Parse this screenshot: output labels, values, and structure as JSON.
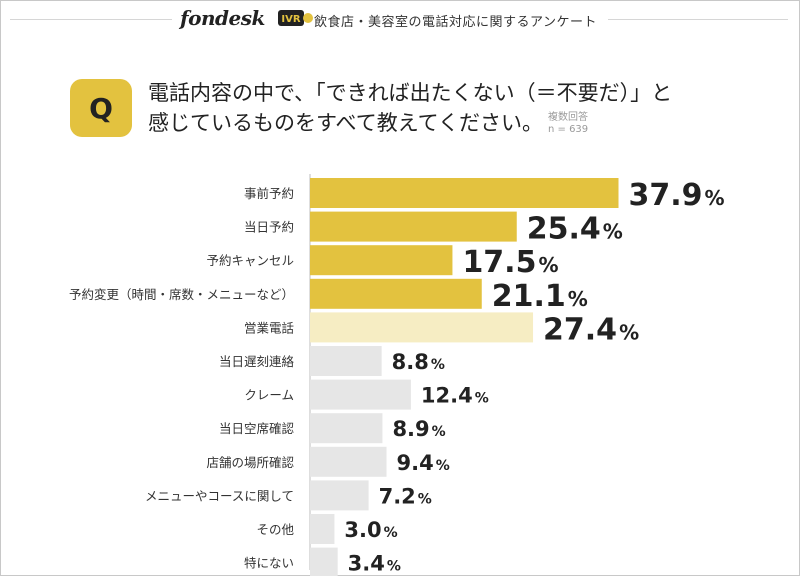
{
  "header": {
    "brand": "fondesk",
    "brand_badge": "IVR",
    "survey_title": "飲食店・美容室の電話対応に関するアンケート"
  },
  "question": {
    "badge": "Q",
    "line1": "電話内容の中で、「できれば出たくない（＝不要だ）」と",
    "line2": "感じているものをすべて教えてください。",
    "meta_label": "複数回答",
    "meta_n": "n = 639"
  },
  "colors": {
    "accent": "#e3c23f",
    "highlight": "#f6edc3",
    "neutral": "#e6e6e6",
    "text": "#222222"
  },
  "chart_data": {
    "type": "bar",
    "orientation": "horizontal",
    "title": "電話内容の中で、「できれば出たくない（＝不要だ）」と感じているものをすべて教えてください。",
    "unit": "%",
    "xlim": [
      0,
      45
    ],
    "categories": [
      "事前予約",
      "当日予約",
      "予約キャンセル",
      "予約変更（時間・席数・メニューなど）",
      "営業電話",
      "当日遅刻連絡",
      "クレーム",
      "当日空席確認",
      "店舗の場所確認",
      "メニューやコースに関して",
      "その他",
      "特にない"
    ],
    "values": [
      37.9,
      25.4,
      17.5,
      21.1,
      27.4,
      8.8,
      12.4,
      8.9,
      9.4,
      7.2,
      3.0,
      3.4
    ],
    "labels": [
      "37.9",
      "25.4",
      "17.5",
      "21.1",
      "27.4",
      "8.8",
      "12.4",
      "8.9",
      "9.4",
      "7.2",
      "3.0",
      "3.4"
    ],
    "bar_styles": [
      "accent",
      "accent",
      "accent",
      "accent",
      "highlight",
      "neutral",
      "neutral",
      "neutral",
      "neutral",
      "neutral",
      "neutral",
      "neutral"
    ]
  }
}
